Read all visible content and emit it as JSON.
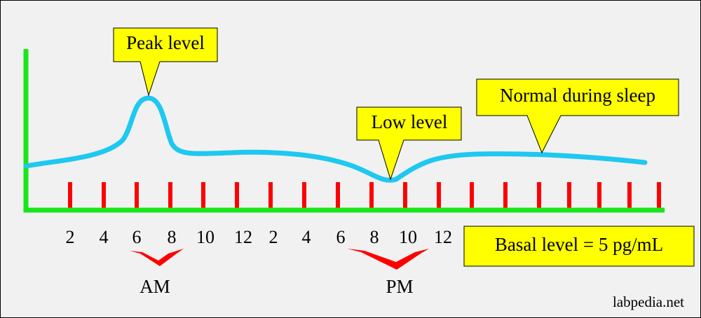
{
  "callouts": [
    {
      "label": "Peak level"
    },
    {
      "label": "Low level"
    },
    {
      "label": "Normal during sleep"
    }
  ],
  "basal_box": {
    "label": "Basal level = 5 pg/mL"
  },
  "hour_labels": [
    "2",
    "4",
    "6",
    "8",
    "10",
    "12",
    "2",
    "4",
    "6",
    "8",
    "10",
    "12"
  ],
  "periods": [
    "AM",
    "PM"
  ],
  "watermark": "labpedia.net"
}
